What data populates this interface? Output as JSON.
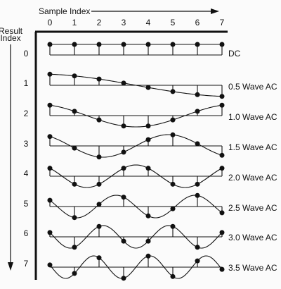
{
  "header": {
    "sample_index_label": "Sample Index",
    "result_index_label_line1": "Result",
    "result_index_label_line2": "Index"
  },
  "sample_indices": [
    "0",
    "1",
    "2",
    "3",
    "4",
    "5",
    "6",
    "7"
  ],
  "result_indices": [
    "0",
    "1",
    "2",
    "3",
    "4",
    "5",
    "6",
    "7"
  ],
  "rows": [
    {
      "result_index": "0",
      "label": "DC",
      "cycles": 0
    },
    {
      "result_index": "1",
      "label": "0.5 Wave AC",
      "cycles": 0.5
    },
    {
      "result_index": "2",
      "label": "1.0 Wave AC",
      "cycles": 1.0
    },
    {
      "result_index": "3",
      "label": "1.5 Wave AC",
      "cycles": 1.5
    },
    {
      "result_index": "4",
      "label": "2.0 Wave AC",
      "cycles": 2.0
    },
    {
      "result_index": "5",
      "label": "2.5 Wave AC",
      "cycles": 2.5
    },
    {
      "result_index": "6",
      "label": "3.0 Wave AC",
      "cycles": 3.0
    },
    {
      "result_index": "7",
      "label": "3.5 Wave AC",
      "cycles": 3.5
    }
  ],
  "colors": {
    "ink": "#111111",
    "background": "#fbfbfb"
  }
}
